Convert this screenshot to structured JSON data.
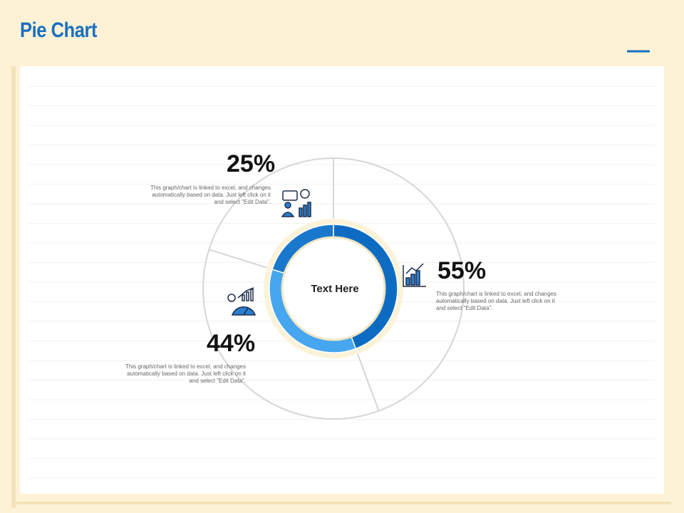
{
  "chart_data": {
    "type": "pie",
    "title": "Pie Chart",
    "center_text": "Text Here",
    "values": [
      55,
      44,
      25
    ],
    "value_labels": [
      "55%",
      "44%",
      "25%"
    ],
    "colors": [
      "#0d6cc2",
      "#46a6ef",
      "#1a78cc"
    ],
    "descriptions": [
      "This graph/chart is linked to excel, and changes automatically based on data. Just left click on it and select \"Edit Data\".",
      "This graph/chart is linked to excel, and changes automatically based on data. Just left click on it and select \"Edit Data\".",
      "This graph/chart is linked to excel, and changes automatically based on data. Just left click on it and select \"Edit Data\"."
    ]
  }
}
